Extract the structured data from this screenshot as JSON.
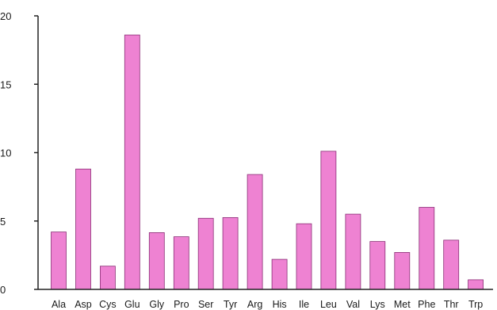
{
  "chart_data": {
    "type": "bar",
    "categories": [
      "Ala",
      "Asp",
      "Cys",
      "Glu",
      "Gly",
      "Pro",
      "Ser",
      "Tyr",
      "Arg",
      "His",
      "Ile",
      "Leu",
      "Val",
      "Lys",
      "Met",
      "Phe",
      "Thr",
      "Trp"
    ],
    "values": [
      4.2,
      8.8,
      1.7,
      18.6,
      4.15,
      3.85,
      5.2,
      5.25,
      8.4,
      2.2,
      4.8,
      10.1,
      5.5,
      3.5,
      2.7,
      6.0,
      3.6,
      0.7
    ],
    "title": "",
    "xlabel": "",
    "ylabel": "",
    "ylim": [
      0,
      20
    ],
    "yticks": [
      0,
      5,
      10,
      15,
      20
    ],
    "grid": false,
    "colors": {
      "bar_fill": "#ee82d2",
      "bar_stroke": "#8a2f76",
      "axis": "#222222"
    }
  }
}
